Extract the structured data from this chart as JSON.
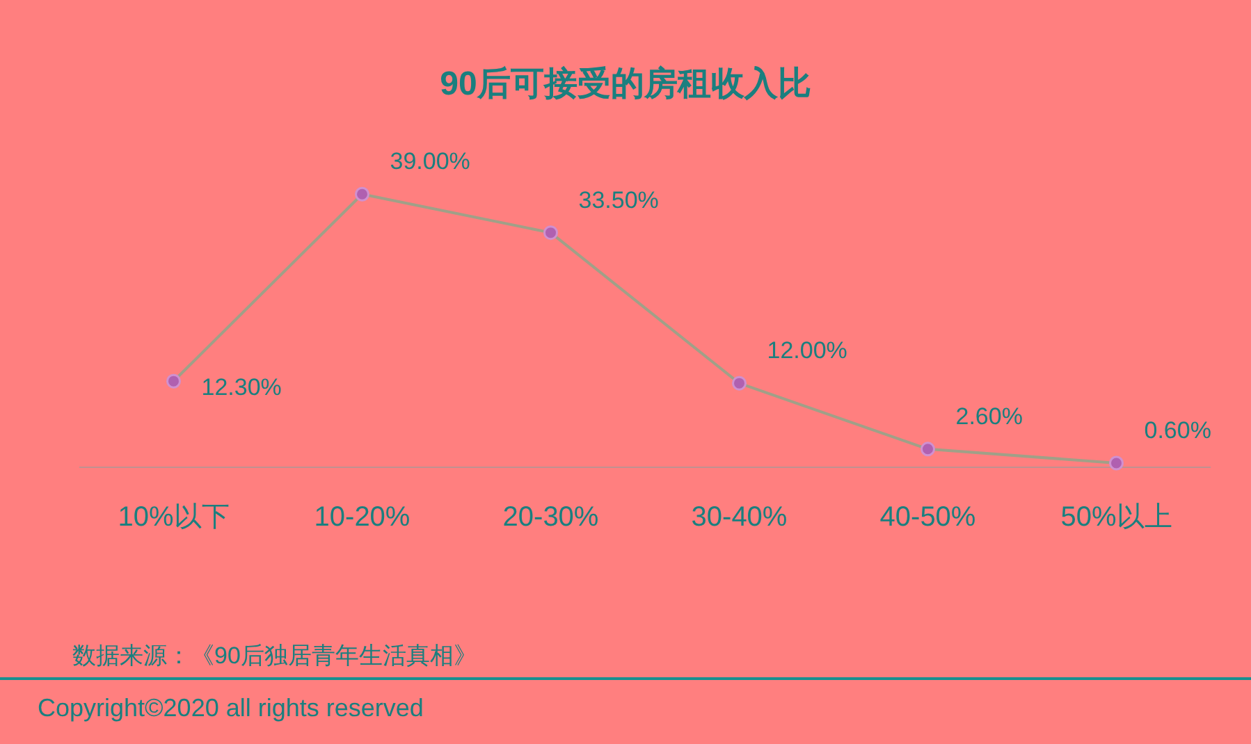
{
  "chart_data": {
    "type": "line",
    "title": "90后可接受的房租收入比",
    "categories": [
      "10%以下",
      "10-20%",
      "20-30%",
      "30-40%",
      "40-50%",
      "50%以上"
    ],
    "series": [
      {
        "color": "#a0a088",
        "values": [
          12.3,
          39.0,
          33.5,
          12.0,
          2.6,
          0.6
        ],
        "value_labels": [
          "12.30%",
          "39.00%",
          "33.50%",
          "12.00%",
          "2.60%",
          "0.60%"
        ]
      }
    ],
    "marker": "circle",
    "line_style": "solid",
    "annotations": [
      "数据来源：《90后独居青年生活真相》",
      "Copyright©2020 all rights reserved"
    ]
  }
}
